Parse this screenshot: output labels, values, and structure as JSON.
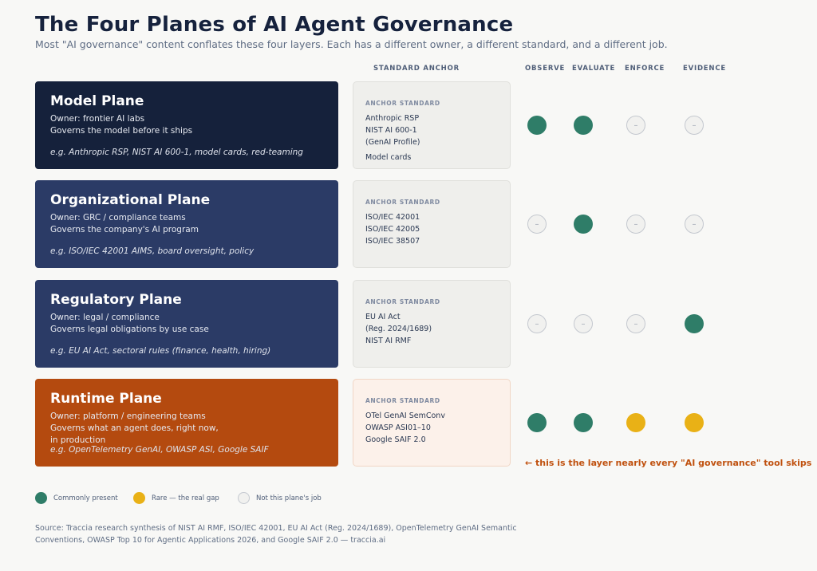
{
  "title": "The Four Planes of AI Agent Governance",
  "subtitle": "Most \"AI governance\" content conflates these four layers. Each has a different owner, a different standard, and a different job.",
  "columns": {
    "anchor": "STANDARD ANCHOR",
    "observe": "OBSERVE",
    "evaluate": "EVALUATE",
    "enforce": "ENFORCE",
    "evidence": "EVIDENCE"
  },
  "anchor_label": "ANCHOR STANDARD",
  "na_glyph": "–",
  "planes": [
    {
      "name": "Model Plane",
      "owner": "Owner: frontier AI labs",
      "governs": [
        "Governs the model before it ships"
      ],
      "example": "e.g. Anthropic RSP, NIST AI 600-1, model cards, red-teaming",
      "color": "#15213b",
      "standards": [
        "Anthropic RSP",
        "NIST AI 600-1",
        "(GenAI Profile)"
      ],
      "standards_extra": "Model cards",
      "status": {
        "observe": "present",
        "evaluate": "present",
        "enforce": "na",
        "evidence": "na"
      }
    },
    {
      "name": "Organizational Plane",
      "owner": "Owner: GRC / compliance teams",
      "governs": [
        "Governs the company's AI program"
      ],
      "example": "e.g. ISO/IEC 42001 AIMS, board oversight, policy",
      "color": "#2b3b66",
      "standards": [
        "ISO/IEC 42001",
        "ISO/IEC 42005",
        "ISO/IEC 38507"
      ],
      "standards_extra": "",
      "status": {
        "observe": "na",
        "evaluate": "present",
        "enforce": "na",
        "evidence": "na"
      }
    },
    {
      "name": "Regulatory Plane",
      "owner": "Owner: legal / compliance",
      "governs": [
        "Governs legal obligations by use case"
      ],
      "example": "e.g. EU AI Act, sectoral rules (finance, health, hiring)",
      "color": "#2b3b66",
      "standards": [
        "EU AI Act",
        "(Reg. 2024/1689)",
        "NIST AI RMF"
      ],
      "standards_extra": "",
      "status": {
        "observe": "na",
        "evaluate": "na",
        "enforce": "na",
        "evidence": "present"
      }
    },
    {
      "name": "Runtime Plane",
      "owner": "Owner: platform / engineering teams",
      "governs": [
        "Governs what an agent does, right now,",
        "in production"
      ],
      "example": "e.g. OpenTelemetry GenAI, OWASP ASI, Google SAIF",
      "color": "#b44a0f",
      "standards": [
        "OTel GenAI SemConv",
        "OWASP ASI01–10",
        "Google SAIF 2.0"
      ],
      "standards_extra": "",
      "status": {
        "observe": "present",
        "evaluate": "present",
        "enforce": "rare",
        "evidence": "rare"
      }
    }
  ],
  "callout": "← this is the layer nearly every \"AI governance\" tool skips",
  "legend": {
    "present": "Commonly present",
    "rare": "Rare — the real gap",
    "na": "Not this plane's job"
  },
  "source_lines": [
    "Source: Traccia research synthesis of NIST AI RMF, ISO/IEC 42001, EU AI Act (Reg. 2024/1689), OpenTelemetry GenAI Semantic",
    "Conventions, OWASP Top 10 for Agentic Applications 2026, and Google SAIF 2.0 — traccia.ai"
  ]
}
